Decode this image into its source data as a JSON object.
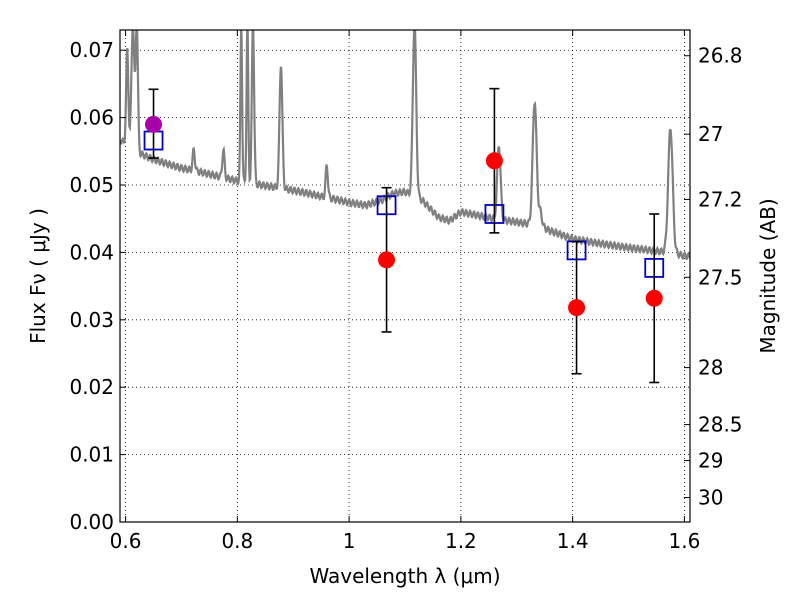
{
  "chart_data": {
    "type": "scatter",
    "xlabel": "Wavelength  λ (μm)",
    "ylabel": "Flux  Fν ( μJy )",
    "y2label": "Magnitude (AB)",
    "xlim": [
      0.59,
      1.61
    ],
    "ylim": [
      0.0,
      0.073
    ],
    "grid": true,
    "x_ticks": [
      {
        "value": 0.6,
        "label": "0.6"
      },
      {
        "value": 0.8,
        "label": "0.8"
      },
      {
        "value": 1.0,
        "label": "1"
      },
      {
        "value": 1.2,
        "label": "1.2"
      },
      {
        "value": 1.4,
        "label": "1.4"
      },
      {
        "value": 1.6,
        "label": "1.6"
      }
    ],
    "y_ticks": [
      {
        "value": 0.0,
        "label": "0.00"
      },
      {
        "value": 0.01,
        "label": "0.01"
      },
      {
        "value": 0.02,
        "label": "0.02"
      },
      {
        "value": 0.03,
        "label": "0.03"
      },
      {
        "value": 0.04,
        "label": "0.04"
      },
      {
        "value": 0.05,
        "label": "0.05"
      },
      {
        "value": 0.06,
        "label": "0.06"
      },
      {
        "value": 0.07,
        "label": "0.07"
      }
    ],
    "y2_ticks": [
      {
        "value": 26.8,
        "label": "26.8"
      },
      {
        "value": 27.0,
        "label": "27"
      },
      {
        "value": 27.2,
        "label": "27.2"
      },
      {
        "value": 27.5,
        "label": "27.5"
      },
      {
        "value": 28.0,
        "label": "28"
      },
      {
        "value": 28.5,
        "label": "28.5"
      },
      {
        "value": 29.0,
        "label": "29"
      },
      {
        "value": 30.0,
        "label": "30"
      }
    ],
    "model_spectrum": {
      "color": "#808080",
      "continuum": [
        [
          0.59,
          0.0567
        ],
        [
          0.61,
          0.0555
        ],
        [
          0.63,
          0.0545
        ],
        [
          0.65,
          0.0538
        ],
        [
          0.68,
          0.053
        ],
        [
          0.7,
          0.0525
        ],
        [
          0.73,
          0.052
        ],
        [
          0.76,
          0.0514
        ],
        [
          0.79,
          0.0508
        ],
        [
          0.82,
          0.0503
        ],
        [
          0.85,
          0.0499
        ],
        [
          0.88,
          0.0495
        ],
        [
          0.9,
          0.0492
        ],
        [
          0.93,
          0.0487
        ],
        [
          0.95,
          0.0483
        ],
        [
          0.98,
          0.0478
        ],
        [
          1.0,
          0.0474
        ],
        [
          1.03,
          0.047
        ],
        [
          1.06,
          0.0478
        ],
        [
          1.08,
          0.0488
        ],
        [
          1.1,
          0.049
        ],
        [
          1.13,
          0.0478
        ],
        [
          1.16,
          0.0452
        ],
        [
          1.18,
          0.0447
        ],
        [
          1.2,
          0.046
        ],
        [
          1.23,
          0.0455
        ],
        [
          1.26,
          0.045
        ],
        [
          1.3,
          0.0445
        ],
        [
          1.34,
          0.044
        ],
        [
          1.36,
          0.0432
        ],
        [
          1.4,
          0.042
        ],
        [
          1.45,
          0.0413
        ],
        [
          1.5,
          0.0407
        ],
        [
          1.55,
          0.0402
        ],
        [
          1.575,
          0.04
        ],
        [
          1.6,
          0.0395
        ],
        [
          1.61,
          0.0394
        ]
      ],
      "lines": [
        {
          "x": 0.603,
          "width": 0.004,
          "peak": 0.07
        },
        {
          "x": 0.613,
          "width": 0.005,
          "peak": 0.074
        },
        {
          "x": 0.62,
          "width": 0.004,
          "peak": 0.074
        },
        {
          "x": 0.722,
          "width": 0.004,
          "peak": 0.0552
        },
        {
          "x": 0.775,
          "width": 0.004,
          "peak": 0.0552
        },
        {
          "x": 0.807,
          "width": 0.003,
          "peak": 0.074
        },
        {
          "x": 0.818,
          "width": 0.003,
          "peak": 0.074
        },
        {
          "x": 0.828,
          "width": 0.004,
          "peak": 0.074
        },
        {
          "x": 0.878,
          "width": 0.005,
          "peak": 0.068
        },
        {
          "x": 0.96,
          "width": 0.004,
          "peak": 0.053
        },
        {
          "x": 1.117,
          "width": 0.006,
          "peak": 0.074
        },
        {
          "x": 1.268,
          "width": 0.006,
          "peak": 0.056
        },
        {
          "x": 1.332,
          "width": 0.007,
          "peak": 0.0625
        },
        {
          "x": 1.342,
          "width": 0.006,
          "peak": 0.046
        },
        {
          "x": 1.575,
          "width": 0.008,
          "peak": 0.0585
        }
      ]
    },
    "series": [
      {
        "marker": "square",
        "color": "#0000cc",
        "points": [
          {
            "x": 0.65,
            "y": 0.0566
          },
          {
            "x": 1.067,
            "y": 0.047
          },
          {
            "x": 1.26,
            "y": 0.0457
          },
          {
            "x": 1.407,
            "y": 0.0403
          },
          {
            "x": 1.546,
            "y": 0.0377
          }
        ]
      },
      {
        "marker": "circle",
        "color": "#ff0000",
        "points": [
          {
            "x": 1.067,
            "y": 0.0389,
            "err_low": 0.0282,
            "err_high": 0.0496
          },
          {
            "x": 1.26,
            "y": 0.0536,
            "err_low": 0.0429,
            "err_high": 0.0643
          },
          {
            "x": 1.407,
            "y": 0.0318,
            "err_low": 0.022,
            "err_high": 0.0416
          },
          {
            "x": 1.546,
            "y": 0.0332,
            "err_low": 0.0207,
            "err_high": 0.0457
          }
        ]
      },
      {
        "marker": "circle",
        "color": "#aa00aa",
        "points": [
          {
            "x": 0.65,
            "y": 0.059,
            "err_low": 0.054,
            "err_high": 0.0642
          }
        ]
      }
    ]
  }
}
